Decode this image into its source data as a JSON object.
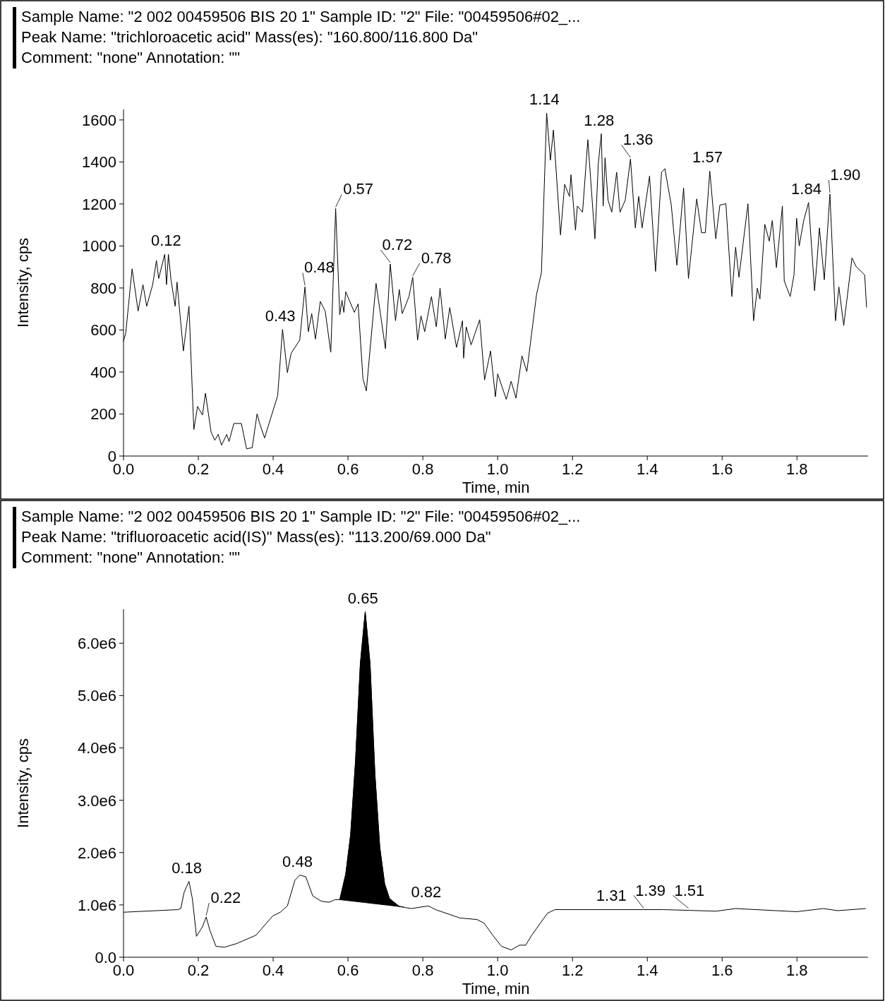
{
  "chart_data": [
    {
      "type": "line",
      "title": "Sample Name: \"2 002 00459506 BIS 20 1\"    Sample ID: \"2\"    File: \"00459506#02_...",
      "subtitle": "Peak Name: \"trichloroacetic acid\"    Mass(es): \"160.800/116.800 Da\"",
      "xlabel": "Time, min",
      "ylabel": "Intensity, cps",
      "xlim": [
        0,
        1.99
      ],
      "ylim": [
        0,
        1650
      ],
      "xticks": [
        {
          "value": 0,
          "label": "0.0"
        },
        {
          "value": 0.2,
          "label": "0.2"
        },
        {
          "value": 0.4,
          "label": "0.4"
        },
        {
          "value": 0.6,
          "label": "0.6"
        },
        {
          "value": 0.8,
          "label": "0.8"
        },
        {
          "value": 1,
          "label": "1.0"
        },
        {
          "value": 1.2,
          "label": "1.2"
        },
        {
          "value": 1.4,
          "label": "1.4"
        },
        {
          "value": 1.6,
          "label": "1.6"
        },
        {
          "value": 1.8,
          "label": "1.8"
        }
      ],
      "yticks": [
        0,
        200,
        400,
        600,
        800,
        1000,
        1200,
        1400,
        1600
      ],
      "series": [
        {
          "color": "#000000",
          "x": [
            0,
            0.006,
            0.023,
            0.039,
            0.052,
            0.062,
            0.078,
            0.088,
            0.094,
            0.11,
            0.115,
            0.12,
            0.127,
            0.138,
            0.143,
            0.16,
            0.175,
            0.188,
            0.198,
            0.211,
            0.219,
            0.234,
            0.244,
            0.253,
            0.262,
            0.276,
            0.282,
            0.295,
            0.315,
            0.329,
            0.344,
            0.357,
            0.364,
            0.377,
            0.412,
            0.425,
            0.438,
            0.448,
            0.471,
            0.485,
            0.494,
            0.503,
            0.513,
            0.526,
            0.539,
            0.554,
            0.567,
            0.578,
            0.584,
            0.589,
            0.594,
            0.617,
            0.627,
            0.64,
            0.649,
            0.675,
            0.7,
            0.713,
            0.727,
            0.737,
            0.745,
            0.763,
            0.773,
            0.786,
            0.795,
            0.805,
            0.823,
            0.836,
            0.846,
            0.86,
            0.872,
            0.89,
            0.906,
            0.909,
            0.916,
            0.929,
            0.952,
            0.965,
            0.981,
            0.994,
            1,
            1.023,
            1.036,
            1.049,
            1.065,
            1.078,
            1.104,
            1.117,
            1.131,
            1.141,
            1.149,
            1.168,
            1.179,
            1.192,
            1.196,
            1.208,
            1.213,
            1.227,
            1.241,
            1.26,
            1.269,
            1.277,
            1.282,
            1.287,
            1.295,
            1.305,
            1.318,
            1.327,
            1.341,
            1.355,
            1.368,
            1.377,
            1.386,
            1.406,
            1.422,
            1.438,
            1.447,
            1.464,
            1.479,
            1.497,
            1.51,
            1.532,
            1.545,
            1.555,
            1.567,
            1.583,
            1.594,
            1.61,
            1.626,
            1.636,
            1.645,
            1.669,
            1.684,
            1.694,
            1.701,
            1.714,
            1.726,
            1.734,
            1.745,
            1.761,
            1.766,
            1.782,
            1.792,
            1.799,
            1.806,
            1.818,
            1.831,
            1.847,
            1.853,
            1.86,
            1.873,
            1.888,
            1.903,
            1.912,
            1.925,
            1.947,
            1.958,
            1.981,
            1.986
          ],
          "values": [
            546,
            586,
            891,
            690,
            816,
            713,
            816,
            931,
            845,
            960,
            816,
            960,
            839,
            713,
            828,
            500,
            713,
            126,
            236,
            195,
            299,
            115,
            75,
            103,
            52,
            103,
            69,
            155,
            155,
            34,
            40,
            201,
            155,
            86,
            287,
            603,
            397,
            489,
            552,
            805,
            592,
            678,
            557,
            736,
            690,
            494,
            1178,
            672,
            741,
            684,
            782,
            684,
            724,
            368,
            310,
            822,
            511,
            914,
            644,
            793,
            678,
            759,
            851,
            552,
            667,
            592,
            759,
            615,
            799,
            557,
            707,
            517,
            644,
            466,
            615,
            529,
            649,
            362,
            500,
            282,
            391,
            270,
            356,
            276,
            477,
            402,
            770,
            874,
            1632,
            1408,
            1552,
            1052,
            1293,
            1236,
            1339,
            1075,
            1190,
            1161,
            1506,
            1034,
            1391,
            1534,
            1190,
            1420,
            1218,
            1161,
            1351,
            1161,
            1218,
            1414,
            1086,
            1236,
            1086,
            1333,
            879,
            1351,
            1368,
            1195,
            908,
            1276,
            845,
            1224,
            1063,
            1063,
            1356,
            1034,
            1195,
            1201,
            759,
            994,
            851,
            1201,
            644,
            799,
            747,
            1103,
            1023,
            1121,
            897,
            1190,
            833,
            759,
            862,
            1132,
            1000,
            1121,
            1207,
            787,
            914,
            1086,
            839,
            1247,
            644,
            805,
            621,
            943,
            902,
            862,
            707
          ]
        }
      ],
      "annotations": [
        "Comment: \"none\"    Annotation: \"\"",
        {
          "text": "0.12",
          "x": 0.12,
          "y": 960
        },
        {
          "text": "0.43",
          "x": 0.425,
          "y": 603
        },
        {
          "text": "0.48",
          "x": 0.485,
          "y": 805
        },
        {
          "text": "0.57",
          "x": 0.567,
          "y": 1178
        },
        {
          "text": "0.72",
          "x": 0.713,
          "y": 914
        },
        {
          "text": "0.78",
          "x": 0.773,
          "y": 851
        },
        {
          "text": "1.14",
          "x": 1.131,
          "y": 1632
        },
        {
          "text": "1.28",
          "x": 1.277,
          "y": 1534
        },
        {
          "text": "1.36",
          "x": 1.355,
          "y": 1414
        },
        {
          "text": "1.57",
          "x": 1.567,
          "y": 1356
        },
        {
          "text": "1.84",
          "x": 1.831,
          "y": 1207
        },
        {
          "text": "1.90",
          "x": 1.888,
          "y": 1247
        }
      ]
    },
    {
      "type": "line",
      "title": "Sample Name: \"2 002 00459506 BIS 20 1\"    Sample ID: \"2\"    File: \"00459506#02_...",
      "subtitle": "Peak Name: \"trifluoroacetic acid(IS)\"    Mass(es): \"113.200/69.000 Da\"",
      "xlabel": "Time, min",
      "ylabel": "Intensity, cps",
      "xlim": [
        0,
        1.99
      ],
      "ylim": [
        0,
        6650000
      ],
      "xticks": [
        {
          "value": 0,
          "label": "0.0"
        },
        {
          "value": 0.2,
          "label": "0.2"
        },
        {
          "value": 0.4,
          "label": "0.4"
        },
        {
          "value": 0.6,
          "label": "0.6"
        },
        {
          "value": 0.8,
          "label": "0.8"
        },
        {
          "value": 1,
          "label": "1.0"
        },
        {
          "value": 1.2,
          "label": "1.2"
        },
        {
          "value": 1.4,
          "label": "1.4"
        },
        {
          "value": 1.6,
          "label": "1.6"
        },
        {
          "value": 1.8,
          "label": "1.8"
        }
      ],
      "yticks": [
        {
          "value": 0,
          "label": "0.0"
        },
        {
          "value": 1000000,
          "label": "1.0e6"
        },
        {
          "value": 2000000,
          "label": "2.0e6"
        },
        {
          "value": 3000000,
          "label": "3.0e6"
        },
        {
          "value": 4000000,
          "label": "4.0e6"
        },
        {
          "value": 5000000,
          "label": "5.0e6"
        },
        {
          "value": 6000000,
          "label": "6.0e6"
        }
      ],
      "series": [
        {
          "color": "#000000",
          "x": [
            0,
            0.146,
            0.153,
            0.162,
            0.175,
            0.184,
            0.195,
            0.211,
            0.221,
            0.231,
            0.247,
            0.269,
            0.302,
            0.354,
            0.399,
            0.419,
            0.438,
            0.458,
            0.471,
            0.487,
            0.506,
            0.529,
            0.549,
            0.565,
            0.578,
            0.594,
            0.607,
            0.62,
            0.633,
            0.646,
            0.659,
            0.672,
            0.685,
            0.698,
            0.711,
            0.737,
            0.769,
            0.815,
            0.834,
            0.899,
            0.945,
            0.964,
            0.987,
            1.01,
            1.036,
            1.058,
            1.075,
            1.091,
            1.133,
            1.153,
            1.247,
            1.442,
            1.584,
            1.636,
            1.799,
            1.87,
            1.909,
            1.984
          ],
          "values": [
            860000,
            910000,
            930000,
            1240000,
            1450000,
            1120000,
            400000,
            580000,
            770000,
            510000,
            210000,
            190000,
            260000,
            420000,
            790000,
            860000,
            980000,
            1470000,
            1570000,
            1540000,
            1170000,
            1070000,
            1050000,
            1100000,
            1100000,
            1590000,
            2340000,
            3740000,
            5610000,
            6600000,
            5610000,
            3500000,
            2100000,
            1400000,
            1120000,
            970000,
            930000,
            980000,
            910000,
            750000,
            720000,
            650000,
            420000,
            210000,
            140000,
            230000,
            230000,
            420000,
            840000,
            910000,
            910000,
            910000,
            880000,
            930000,
            870000,
            930000,
            890000,
            930000
          ]
        },
        {
          "type": "area",
          "color": "#000000",
          "x": [
            0.578,
            0.594,
            0.607,
            0.62,
            0.633,
            0.646,
            0.659,
            0.672,
            0.685,
            0.698,
            0.711,
            0.737,
            0.748
          ],
          "values": [
            1100000,
            1590000,
            2340000,
            3740000,
            5610000,
            6600000,
            5610000,
            3500000,
            2100000,
            1400000,
            1120000,
            970000,
            960000
          ]
        }
      ],
      "annotations": [
        "Comment: \"none\"    Annotation: \"\"",
        {
          "text": "0.18",
          "x": 0.175,
          "y": 1450000
        },
        {
          "text": "0.22",
          "x": 0.221,
          "y": 770000
        },
        {
          "text": "0.48",
          "x": 0.471,
          "y": 1570000
        },
        {
          "text": "0.65",
          "x": 0.646,
          "y": 6600000
        },
        {
          "text": "0.82",
          "x": 0.815,
          "y": 980000
        },
        {
          "text": "1.31",
          "x": 1.31,
          "y": 920000
        },
        {
          "text": "1.39",
          "x": 1.39,
          "y": 910000
        },
        {
          "text": "1.51",
          "x": 1.51,
          "y": 910000
        }
      ]
    }
  ]
}
